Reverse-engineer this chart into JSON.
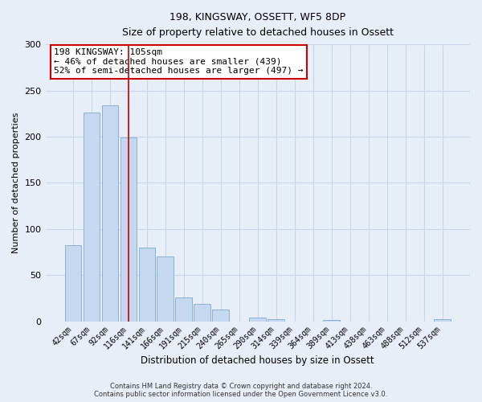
{
  "title": "198, KINGSWAY, OSSETT, WF5 8DP",
  "subtitle": "Size of property relative to detached houses in Ossett",
  "bar_labels": [
    "42sqm",
    "67sqm",
    "92sqm",
    "116sqm",
    "141sqm",
    "166sqm",
    "191sqm",
    "215sqm",
    "240sqm",
    "265sqm",
    "290sqm",
    "314sqm",
    "339sqm",
    "364sqm",
    "389sqm",
    "413sqm",
    "438sqm",
    "463sqm",
    "488sqm",
    "512sqm",
    "537sqm"
  ],
  "bar_values": [
    82,
    226,
    234,
    199,
    80,
    70,
    26,
    19,
    13,
    0,
    4,
    2,
    0,
    0,
    1,
    0,
    0,
    0,
    0,
    0,
    2
  ],
  "bar_color": "#c5d8f0",
  "bar_edge_color": "#8ab0d0",
  "vline_x": 3.0,
  "vline_color": "#cc0000",
  "annotation_box_text": "198 KINGSWAY: 105sqm\n← 46% of detached houses are smaller (439)\n52% of semi-detached houses are larger (497) →",
  "annotation_box_facecolor": "white",
  "annotation_box_edgecolor": "#cc0000",
  "ylabel": "Number of detached properties",
  "xlabel": "Distribution of detached houses by size in Ossett",
  "ylim": [
    0,
    300
  ],
  "yticks": [
    0,
    50,
    100,
    150,
    200,
    250,
    300
  ],
  "background_color": "#e8eef8",
  "grid_color": "#c8d4e8",
  "footer_line1": "Contains HM Land Registry data © Crown copyright and database right 2024.",
  "footer_line2": "Contains public sector information licensed under the Open Government Licence v3.0."
}
